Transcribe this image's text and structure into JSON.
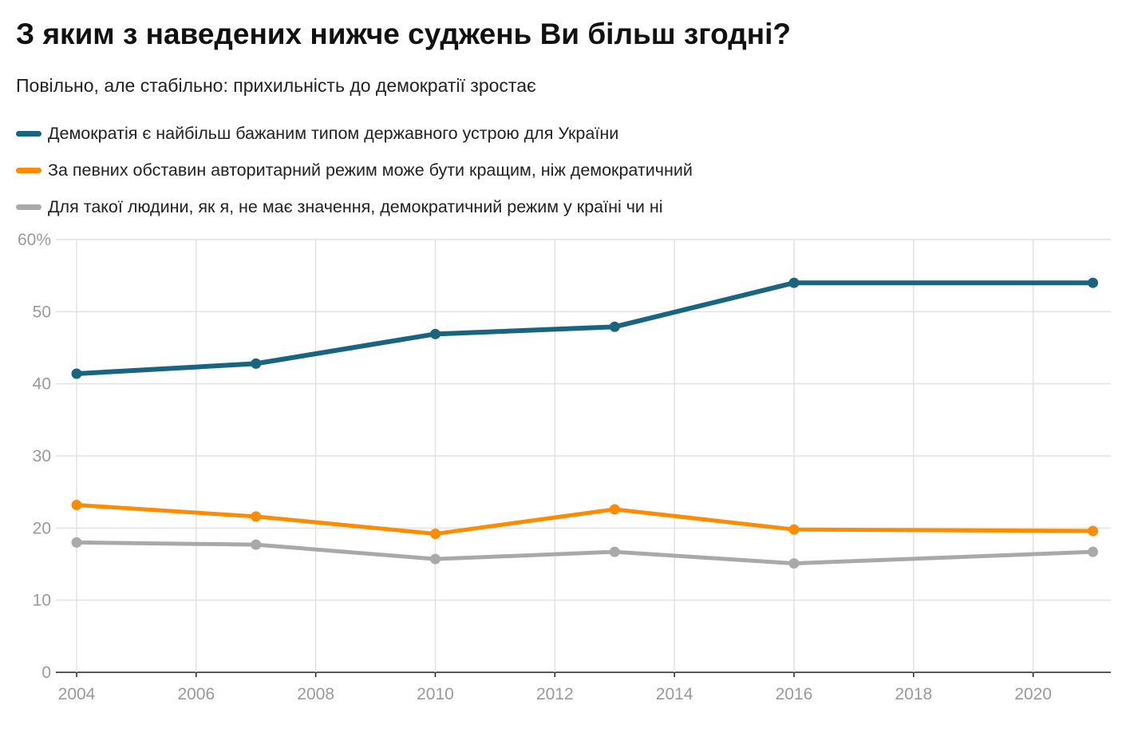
{
  "chart_data": {
    "type": "line",
    "title": "З яким з наведених нижче суджень Ви більш згодні?",
    "subtitle": "Повільно, але стабільно: прихильність до демократії зростає",
    "x": [
      2004,
      2007,
      2010,
      2013,
      2016,
      2021
    ],
    "series": [
      {
        "name": "Демократія є найбільш бажаним типом державного устрою для України",
        "color": "#19647e",
        "values": [
          41.4,
          42.8,
          46.9,
          47.9,
          54.0,
          54.0
        ]
      },
      {
        "name": "За певних обставин авторитарний режим може бути кращим, ніж демократичний",
        "color": "#ff8c00",
        "values": [
          23.2,
          21.6,
          19.2,
          22.6,
          19.8,
          19.6
        ]
      },
      {
        "name": "Для такої людини, як я, не має значення, демократичний режим у країні чи ні",
        "color": "#a9a9a9",
        "values": [
          18.0,
          17.7,
          15.7,
          16.7,
          15.1,
          16.7
        ]
      }
    ],
    "xlim": [
      2004,
      2021.3
    ],
    "ylim": [
      0,
      60
    ],
    "x_ticks": [
      "2004",
      "2006",
      "2008",
      "2010",
      "2012",
      "2014",
      "2016",
      "2018",
      "2020"
    ],
    "y_ticks": [
      "0",
      "10",
      "20",
      "30",
      "40",
      "50",
      "60%"
    ],
    "grid": true,
    "legend_placement": "top-left"
  }
}
